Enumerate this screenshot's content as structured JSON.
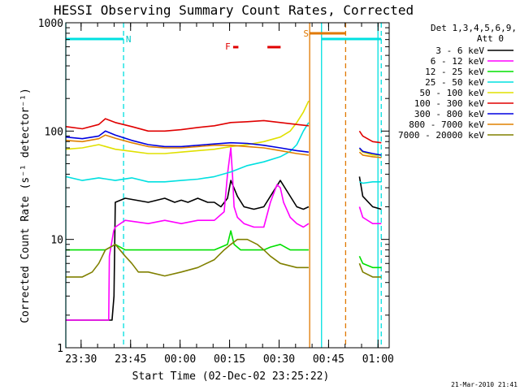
{
  "chart_data": {
    "type": "line",
    "title": "HESSI Observing Summary Count Rates, Corrected",
    "xlabel": "Start Time (02-Dec-02 23:25:22)",
    "ylabel": "Corrected Count Rate (s⁻¹ detector⁻¹)",
    "y_scale": "log",
    "ylim": [
      1,
      1000
    ],
    "xlim_minutes": [
      0,
      98
    ],
    "x_start": "2002-12-02 23:25:22",
    "x_tick_labels": [
      "23:30",
      "23:45",
      "00:00",
      "00:15",
      "00:30",
      "00:45",
      "01:00"
    ],
    "y_tick_labels": [
      "1",
      "10",
      "100",
      "1000"
    ],
    "y_tick_values": [
      1,
      10,
      100,
      1000
    ],
    "legend_header": [
      "Det 1,3,4,5,6,9,",
      "Att 0"
    ],
    "legend_position": "top-right outside",
    "timestamp": "21-Mar-2010 21:41",
    "flag_labels": [
      {
        "text": "N",
        "color": "#00c8c8"
      },
      {
        "text": "F",
        "color": "#e00000"
      },
      {
        "text": "S",
        "color": "#e07800"
      }
    ],
    "series": [
      {
        "name": "3 - 6 keV",
        "color": "#000000",
        "segments": [
          {
            "x": [
              0,
              14,
              14.6,
              15,
              18,
              25,
              30,
              33,
              35,
              37,
              40,
              43,
              45,
              47,
              49,
              50,
              52,
              54,
              57,
              60,
              62,
              65,
              67,
              70,
              72,
              73.6
            ],
            "y": [
              1.8,
              1.8,
              3,
              22,
              24,
              22,
              24,
              22,
              23,
              22,
              24,
              22,
              22,
              20,
              24,
              35,
              25,
              20,
              19,
              20,
              25,
              35,
              28,
              20,
              19,
              20
            ]
          },
          {
            "x": [
              89,
              90,
              93,
              95.6
            ],
            "y": [
              38,
              25,
              20,
              19
            ]
          }
        ]
      },
      {
        "name": "6 - 12 keV",
        "color": "#ff00ff",
        "segments": [
          {
            "x": [
              0,
              13,
              13.2,
              14.5,
              15,
              18,
              25,
              30,
              35,
              40,
              45,
              48,
              49,
              50,
              50.5,
              51,
              52,
              54,
              57,
              60,
              62,
              64,
              65,
              66,
              68,
              70,
              72,
              73.6
            ],
            "y": [
              1.8,
              1.8,
              7,
              12,
              13,
              15,
              14,
              15,
              14,
              15,
              15,
              18,
              40,
              70,
              40,
              20,
              16,
              14,
              13,
              13,
              22,
              32,
              30,
              22,
              16,
              14,
              13,
              14
            ]
          },
          {
            "x": [
              89,
              90,
              93,
              95.6
            ],
            "y": [
              20,
              16,
              14,
              14
            ]
          }
        ]
      },
      {
        "name": "12 - 25 keV",
        "color": "#00e000",
        "segments": [
          {
            "x": [
              0,
              12,
              15,
              18,
              25,
              30,
              35,
              40,
              45,
              49,
              50,
              51,
              53,
              57,
              60,
              62,
              65,
              68,
              70,
              73.6
            ],
            "y": [
              8,
              8,
              9,
              8,
              8,
              8,
              8,
              8,
              8,
              9,
              12,
              9,
              8,
              8,
              8,
              8.5,
              9,
              8,
              8,
              8
            ]
          },
          {
            "x": [
              89,
              90,
              93,
              95.6
            ],
            "y": [
              7,
              6,
              5.5,
              5.5
            ]
          }
        ]
      },
      {
        "name": "25 - 50 keV",
        "color": "#00e0e0",
        "segments": [
          {
            "x": [
              0,
              5,
              10,
              15,
              20,
              25,
              30,
              35,
              40,
              45,
              50,
              55,
              60,
              65,
              68,
              70,
              72,
              73.6
            ],
            "y": [
              38,
              35,
              37,
              35,
              37,
              34,
              34,
              35,
              36,
              38,
              42,
              48,
              52,
              58,
              65,
              75,
              100,
              120
            ]
          },
          {
            "x": [
              89,
              90,
              93,
              95.6
            ],
            "y": [
              34,
              33,
              34,
              34
            ]
          }
        ]
      },
      {
        "name": "50 - 100 keV",
        "color": "#e0e000",
        "segments": [
          {
            "x": [
              0,
              5,
              10,
              15,
              20,
              25,
              30,
              35,
              40,
              45,
              50,
              55,
              60,
              65,
              68,
              70,
              72,
              73.6
            ],
            "y": [
              68,
              70,
              75,
              68,
              65,
              62,
              62,
              64,
              66,
              68,
              72,
              75,
              80,
              88,
              100,
              120,
              150,
              190
            ]
          },
          {
            "x": [
              89,
              90,
              93,
              95.6
            ],
            "y": [
              68,
              64,
              60,
              60
            ]
          }
        ]
      },
      {
        "name": "100 - 300 keV",
        "color": "#e00000",
        "segments": [
          {
            "x": [
              0,
              5,
              10,
              12,
              15,
              20,
              25,
              30,
              35,
              40,
              45,
              50,
              55,
              60,
              65,
              70,
              73.6
            ],
            "y": [
              110,
              105,
              115,
              130,
              120,
              110,
              100,
              100,
              103,
              108,
              112,
              120,
              122,
              125,
              120,
              115,
              112
            ]
          },
          {
            "x": [
              89,
              90,
              93,
              95.6
            ],
            "y": [
              100,
              90,
              80,
              78
            ]
          }
        ]
      },
      {
        "name": "300 - 800 keV",
        "color": "#0000e0",
        "segments": [
          {
            "x": [
              0,
              5,
              10,
              12,
              15,
              20,
              25,
              30,
              35,
              40,
              45,
              50,
              55,
              60,
              65,
              70,
              73.6
            ],
            "y": [
              88,
              85,
              90,
              100,
              92,
              82,
              75,
              72,
              72,
              74,
              76,
              78,
              77,
              74,
              70,
              66,
              64
            ]
          },
          {
            "x": [
              89,
              90,
              93,
              95.6
            ],
            "y": [
              70,
              65,
              62,
              60
            ]
          }
        ]
      },
      {
        "name": "800 - 7000 keV",
        "color": "#e08000",
        "segments": [
          {
            "x": [
              0,
              5,
              10,
              12,
              15,
              20,
              25,
              30,
              35,
              40,
              45,
              50,
              55,
              60,
              65,
              70,
              73.6
            ],
            "y": [
              82,
              80,
              85,
              92,
              86,
              78,
              72,
              70,
              70,
              72,
              74,
              74,
              72,
              70,
              66,
              62,
              60
            ]
          },
          {
            "x": [
              89,
              90,
              93,
              95.6
            ],
            "y": [
              64,
              60,
              58,
              57
            ]
          }
        ]
      },
      {
        "name": "7000 - 20000 keV",
        "color": "#808000",
        "segments": [
          {
            "x": [
              0,
              5,
              8,
              10,
              12,
              15,
              18,
              20,
              22,
              25,
              30,
              35,
              40,
              45,
              48,
              50,
              52,
              55,
              58,
              60,
              62,
              65,
              70,
              73.6
            ],
            "y": [
              4.5,
              4.5,
              5,
              6,
              8,
              9,
              7,
              6,
              5,
              5,
              4.6,
              5,
              5.5,
              6.5,
              8,
              9,
              10,
              10,
              9,
              8,
              7,
              6,
              5.5,
              5.5
            ]
          },
          {
            "x": [
              89,
              90,
              93,
              95.6
            ],
            "y": [
              6,
              5,
              4.5,
              4.5
            ]
          }
        ]
      }
    ],
    "interval_lines": [
      {
        "type": "solid",
        "color": "#00e0e0",
        "x": [
          0,
          77.5,
          94.6
        ]
      },
      {
        "type": "dashed",
        "color": "#00e0e0",
        "x": [
          17.5,
          95.6
        ]
      },
      {
        "type": "solid",
        "color": "#e07800",
        "x": [
          73.9
        ]
      },
      {
        "type": "dashed",
        "color": "#e07800",
        "x": [
          84.8
        ]
      }
    ],
    "flag_bars": [
      {
        "label": "N",
        "color": "#00e0e0",
        "x": [
          [
            0,
            17.5
          ],
          [
            77.5,
            95.6
          ]
        ]
      },
      {
        "label": "F",
        "color": "#e00000",
        "x": [
          [
            50.7,
            52.3
          ],
          [
            61.1,
            65.1
          ]
        ]
      },
      {
        "label": "S",
        "color": "#e07800",
        "x": [
          [
            73.9,
            84.8
          ]
        ]
      }
    ]
  }
}
